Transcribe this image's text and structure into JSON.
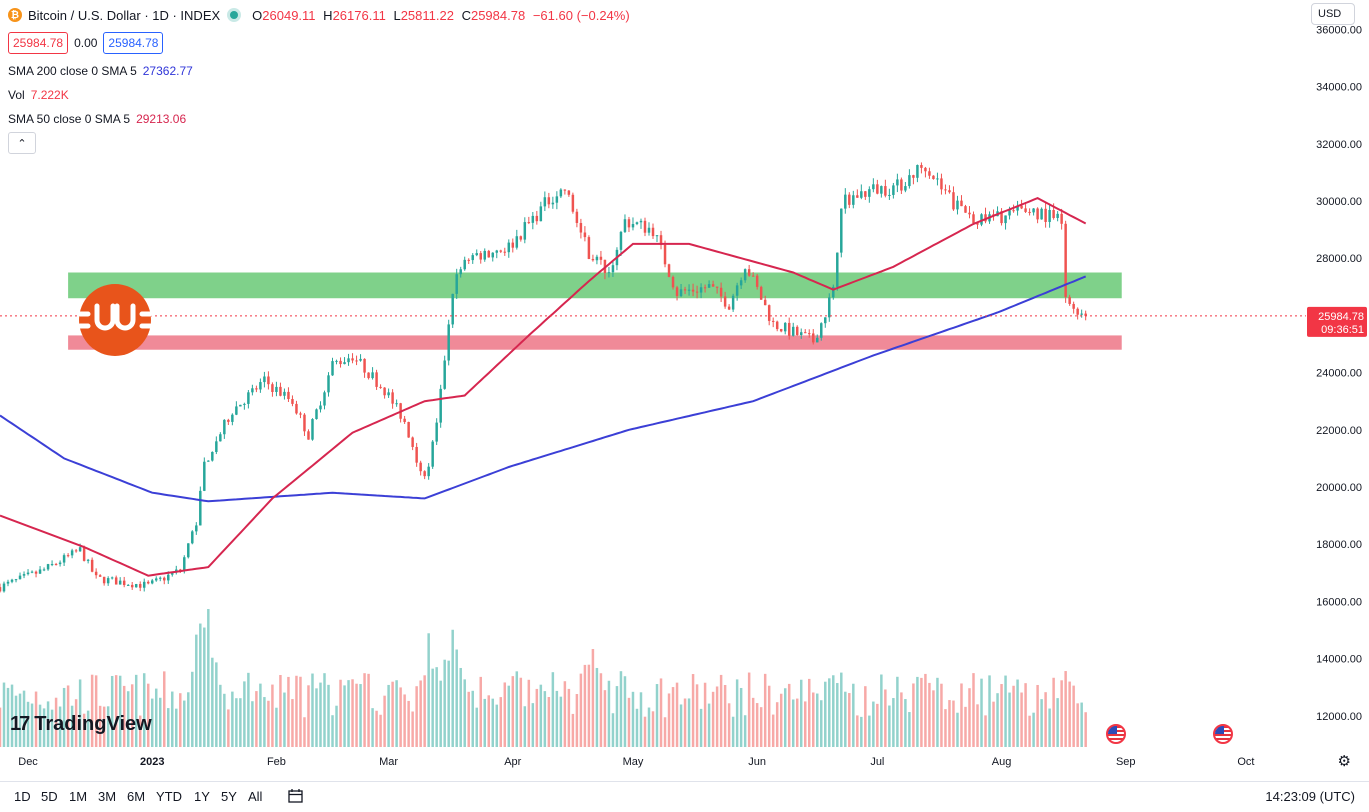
{
  "header": {
    "symbol_icon": "bitcoin-icon",
    "title": "Bitcoin / U.S. Dollar · 1D · INDEX",
    "ohlc": [
      {
        "k": "O",
        "v": "26049.11"
      },
      {
        "k": "H",
        "v": "26176.11"
      },
      {
        "k": "L",
        "v": "25811.22"
      },
      {
        "k": "C",
        "v": "25984.78"
      }
    ],
    "change": "−61.60 (−0.24%)",
    "bid": "25984.78",
    "spread": "0.00",
    "ask": "25984.78"
  },
  "indicators": [
    {
      "label": "SMA 200 close 0 SMA 5",
      "value": "27362.77",
      "color": "#2f35d8"
    },
    {
      "label": "Vol",
      "value": "7.222K",
      "color": "#f23645"
    },
    {
      "label": "SMA 50 close 0 SMA 5",
      "value": "29213.06",
      "color": "#d6264f"
    }
  ],
  "currency": "USD",
  "watermark": "TradingView",
  "price_label": {
    "value": "25984.78",
    "countdown": "09:36:51"
  },
  "timeframes": [
    "1D",
    "5D",
    "1M",
    "3M",
    "6M",
    "YTD",
    "1Y",
    "5Y",
    "All"
  ],
  "clock": "14:23:09 (UTC)",
  "colors": {
    "up": "#26a69a",
    "down": "#ef5350",
    "sma50": "#d6264f",
    "sma200": "#3b3fd6",
    "resistance_zone": "#7fd18a",
    "support_zone": "#f08a98"
  },
  "chart_data": {
    "type": "candlestick",
    "title": "Bitcoin / U.S. Dollar · 1D · INDEX",
    "y_ticks": [
      12000,
      14000,
      16000,
      18000,
      20000,
      22000,
      24000,
      26000,
      28000,
      30000,
      32000,
      34000,
      36000
    ],
    "y_tick_labels": [
      "12000.00",
      "14000.00",
      "16000.00",
      "18000.00",
      "20000.00",
      "22000.00",
      "24000.00",
      "26000.00",
      "28000.00",
      "30000.00",
      "32000.00",
      "34000.00",
      "36000.00"
    ],
    "x_ticks": [
      "Dec",
      "2023",
      "Feb",
      "Mar",
      "Apr",
      "May",
      "Jun",
      "Jul",
      "Aug",
      "Sep",
      "Oct"
    ],
    "x_range": [
      "2022-11-24",
      "2023-10-14"
    ],
    "zones": [
      {
        "kind": "resistance",
        "from": 26600,
        "to": 27500,
        "start": "2022-12-11",
        "end": "2023-08-31"
      },
      {
        "kind": "support",
        "from": 24800,
        "to": 25300,
        "start": "2022-12-11",
        "end": "2023-08-31"
      }
    ],
    "current_price": 25984.78,
    "price_waypoints": [
      [
        "2022-11-24",
        16500
      ],
      [
        "2022-12-05",
        17100
      ],
      [
        "2022-12-14",
        17800
      ],
      [
        "2022-12-18",
        16800
      ],
      [
        "2022-12-31",
        16550
      ],
      [
        "2023-01-08",
        17100
      ],
      [
        "2023-01-12",
        18800
      ],
      [
        "2023-01-14",
        20800
      ],
      [
        "2023-01-21",
        22700
      ],
      [
        "2023-01-29",
        23700
      ],
      [
        "2023-02-05",
        23000
      ],
      [
        "2023-02-09",
        21800
      ],
      [
        "2023-02-15",
        24300
      ],
      [
        "2023-02-20",
        24600
      ],
      [
        "2023-02-28",
        23400
      ],
      [
        "2023-03-05",
        22300
      ],
      [
        "2023-03-10",
        20200
      ],
      [
        "2023-03-13",
        22100
      ],
      [
        "2023-03-17",
        26900
      ],
      [
        "2023-03-20",
        28000
      ],
      [
        "2023-03-31",
        28400
      ],
      [
        "2023-04-11",
        30200
      ],
      [
        "2023-04-14",
        30400
      ],
      [
        "2023-04-20",
        28200
      ],
      [
        "2023-04-25",
        27500
      ],
      [
        "2023-04-29",
        29300
      ],
      [
        "2023-05-06",
        29000
      ],
      [
        "2023-05-12",
        26800
      ],
      [
        "2023-05-20",
        27000
      ],
      [
        "2023-05-25",
        26400
      ],
      [
        "2023-05-29",
        27800
      ],
      [
        "2023-06-05",
        25700
      ],
      [
        "2023-06-15",
        25100
      ],
      [
        "2023-06-20",
        26800
      ],
      [
        "2023-06-22",
        30000
      ],
      [
        "2023-06-30",
        30400
      ],
      [
        "2023-07-06",
        30500
      ],
      [
        "2023-07-13",
        31300
      ],
      [
        "2023-07-20",
        29900
      ],
      [
        "2023-07-27",
        29300
      ],
      [
        "2023-08-08",
        29700
      ],
      [
        "2023-08-14",
        29400
      ],
      [
        "2023-08-16",
        29200
      ],
      [
        "2023-08-17",
        26500
      ],
      [
        "2023-08-22",
        26000
      ]
    ],
    "sma200_waypoints": [
      [
        "2022-11-24",
        22500
      ],
      [
        "2022-12-10",
        21000
      ],
      [
        "2023-01-01",
        19800
      ],
      [
        "2023-01-15",
        19500
      ],
      [
        "2023-02-15",
        19800
      ],
      [
        "2023-03-10",
        19600
      ],
      [
        "2023-03-31",
        20700
      ],
      [
        "2023-04-30",
        22000
      ],
      [
        "2023-05-31",
        23000
      ],
      [
        "2023-06-30",
        24600
      ],
      [
        "2023-07-31",
        26100
      ],
      [
        "2023-08-22",
        27362
      ]
    ],
    "sma50_waypoints": [
      [
        "2022-11-24",
        19000
      ],
      [
        "2022-12-15",
        17900
      ],
      [
        "2022-12-31",
        16900
      ],
      [
        "2023-01-15",
        17200
      ],
      [
        "2023-01-31",
        19600
      ],
      [
        "2023-02-20",
        21900
      ],
      [
        "2023-03-10",
        23000
      ],
      [
        "2023-03-20",
        23200
      ],
      [
        "2023-04-05",
        25300
      ],
      [
        "2023-04-20",
        27200
      ],
      [
        "2023-05-01",
        28500
      ],
      [
        "2023-05-15",
        28500
      ],
      [
        "2023-06-10",
        27500
      ],
      [
        "2023-06-20",
        26900
      ],
      [
        "2023-07-05",
        27700
      ],
      [
        "2023-07-25",
        29200
      ],
      [
        "2023-08-10",
        30100
      ],
      [
        "2023-08-22",
        29213
      ]
    ],
    "volume_peaks": [
      [
        "2023-01-14",
        1.0
      ],
      [
        "2023-03-11",
        0.72
      ],
      [
        "2023-03-17",
        0.8
      ],
      [
        "2023-04-21",
        0.8
      ],
      [
        "2023-06-20",
        0.6
      ],
      [
        "2023-07-13",
        0.5
      ],
      [
        "2023-08-17",
        0.55
      ]
    ],
    "legend_placement": "top-left",
    "grid": false
  }
}
